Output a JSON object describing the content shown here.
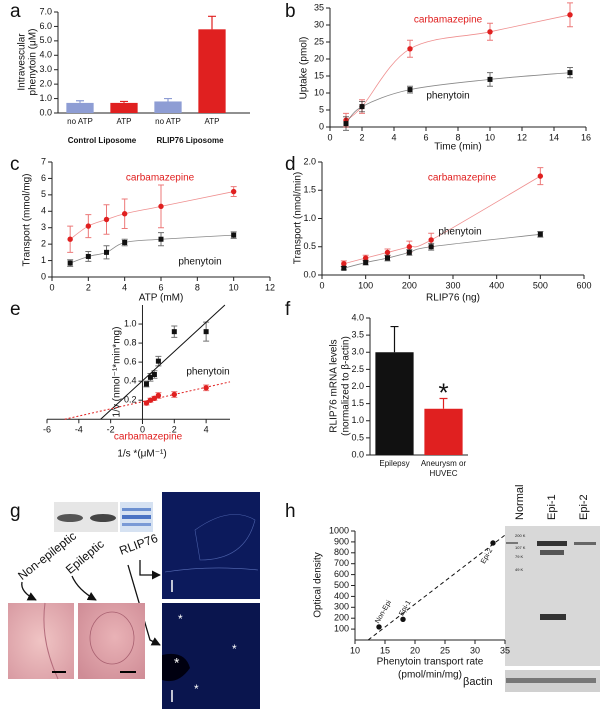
{
  "chart_data": [
    {
      "panel": "a",
      "type": "bar",
      "ylabel": [
        "Intravescular",
        "phenytoin (μM)"
      ],
      "categories": [
        "no ATP",
        "ATP",
        "no ATP",
        "ATP"
      ],
      "groups": [
        "Control Liposome",
        "RLIP76 Liposome"
      ],
      "values": [
        0.7,
        0.7,
        0.8,
        5.8
      ],
      "errors": [
        0.15,
        0.1,
        0.2,
        0.9
      ],
      "colors": [
        "#8e9dd4",
        "#e02020",
        "#8e9dd4",
        "#e02020"
      ],
      "ylim": [
        0,
        7
      ],
      "yticks": [
        {
          "value": 0,
          "label": "0.0"
        },
        {
          "value": 1,
          "label": "1.0"
        },
        {
          "value": 2,
          "label": "2.0"
        },
        {
          "value": 3,
          "label": "3.0"
        },
        {
          "value": 4,
          "label": "4.0"
        },
        {
          "value": 5,
          "label": "5.0"
        },
        {
          "value": 6,
          "label": "6.0"
        },
        {
          "value": 7,
          "label": "7.0"
        }
      ]
    },
    {
      "panel": "b",
      "type": "line",
      "xlabel": "Time (min)",
      "ylabel": "Uptake (pmol)",
      "x": [
        1,
        2,
        5,
        10,
        15
      ],
      "series": [
        {
          "name": "carbamazepine",
          "color": "#e02020",
          "marker": "circle",
          "values": [
            2,
            6,
            23,
            28,
            33
          ],
          "errors": [
            2,
            2,
            2.5,
            2.5,
            3.5
          ]
        },
        {
          "name": "phenytoin",
          "color": "#111111",
          "marker": "square",
          "values": [
            1,
            6,
            11,
            14,
            16
          ],
          "errors": [
            2,
            1.5,
            1,
            2,
            1.5
          ]
        }
      ],
      "xlim": [
        0,
        16
      ],
      "xticks": [
        0,
        2,
        4,
        6,
        8,
        10,
        12,
        14,
        16
      ],
      "ylim": [
        0,
        35
      ],
      "yticks": [
        0,
        5,
        10,
        15,
        20,
        25,
        30,
        35
      ],
      "fit": "curve"
    },
    {
      "panel": "c",
      "type": "line",
      "xlabel": "ATP (mM)",
      "ylabel": "Transport (mmol/mg)",
      "x": [
        1,
        2,
        3,
        4,
        6,
        10
      ],
      "series": [
        {
          "name": "carbamazepine",
          "color": "#e02020",
          "marker": "circle",
          "values": [
            2.3,
            3.1,
            3.5,
            3.85,
            4.3,
            5.2
          ],
          "errors": [
            0.8,
            0.7,
            0.9,
            0.9,
            1.3,
            0.3
          ]
        },
        {
          "name": "phenytoin",
          "color": "#111111",
          "marker": "square",
          "values": [
            0.85,
            1.25,
            1.5,
            2.1,
            2.3,
            2.55
          ],
          "errors": [
            0.2,
            0.3,
            0.4,
            0.2,
            0.4,
            0.2
          ]
        }
      ],
      "xlim": [
        0,
        12
      ],
      "xticks": [
        0,
        2,
        4,
        6,
        8,
        10,
        12
      ],
      "ylim": [
        0,
        7
      ],
      "yticks": [
        0,
        1,
        2,
        3,
        4,
        5,
        6,
        7
      ],
      "fit": "curve"
    },
    {
      "panel": "d",
      "type": "line",
      "xlabel": "RLIP76 (ng)",
      "ylabel": "Transport (nmol/min)",
      "x": [
        50,
        100,
        150,
        200,
        250,
        500
      ],
      "series": [
        {
          "name": "carbamazepine",
          "color": "#e02020",
          "marker": "circle",
          "values": [
            0.2,
            0.3,
            0.4,
            0.5,
            0.62,
            1.75
          ],
          "errors": [
            0.05,
            0.05,
            0.06,
            0.1,
            0.12,
            0.15
          ]
        },
        {
          "name": "phenytoin",
          "color": "#111111",
          "marker": "square",
          "values": [
            0.12,
            0.22,
            0.3,
            0.4,
            0.5,
            0.72
          ],
          "errors": [
            0.03,
            0.04,
            0.05,
            0.05,
            0.06,
            0.05
          ]
        }
      ],
      "xlim": [
        0,
        600
      ],
      "xticks": [
        0,
        100,
        200,
        300,
        400,
        500,
        600
      ],
      "ylim": [
        0,
        2
      ],
      "yticks": [
        {
          "value": 0,
          "label": "0.0"
        },
        {
          "value": 0.5,
          "label": "0.5"
        },
        {
          "value": 1,
          "label": "1.0"
        },
        {
          "value": 1.5,
          "label": "1.5"
        },
        {
          "value": 2,
          "label": "2.0"
        }
      ],
      "fit": "curve"
    },
    {
      "panel": "e",
      "type": "line",
      "xlabel": "1/s *(μM⁻¹)",
      "ylabel": "1/v (nmol⁻¹*min*mg)",
      "x": [
        0.25,
        0.5,
        0.75,
        1,
        2,
        4
      ],
      "series": [
        {
          "name": "phenytoin",
          "color": "#111111",
          "marker": "square",
          "values": [
            0.37,
            0.44,
            0.47,
            0.61,
            0.92,
            0.92
          ],
          "errors": [
            0.03,
            0.04,
            0.04,
            0.05,
            0.06,
            0.1
          ]
        },
        {
          "name": "carbamazepine",
          "color": "#e02020",
          "marker": "circle",
          "values": [
            0.17,
            0.2,
            0.22,
            0.25,
            0.26,
            0.33
          ],
          "errors": [
            0.02,
            0.02,
            0.02,
            0.03,
            0.03,
            0.03
          ]
        }
      ],
      "xlim": [
        -6,
        5.5
      ],
      "xticks": [
        -6,
        -4,
        -2,
        0,
        2,
        4
      ],
      "ylim": [
        -0.05,
        1.2
      ],
      "yticks": [
        0.2,
        0.4,
        0.6,
        0.8,
        {
          "value": 1,
          "label": "1.0"
        }
      ],
      "axes": "cross",
      "fit": "linear"
    },
    {
      "panel": "f",
      "type": "bar",
      "ylabel": [
        "RLIP76 mRNA levels",
        "(normalized to β-actin)"
      ],
      "categories": [
        "Epilepsy",
        "Aneurysm or HUVEC"
      ],
      "values": [
        3.0,
        1.35
      ],
      "errors": [
        0.75,
        0.3
      ],
      "colors": [
        "#111111",
        "#e02020"
      ],
      "annotation": "*",
      "ylim": [
        0,
        4
      ],
      "yticks": [
        {
          "value": 0,
          "label": "0.0"
        },
        {
          "value": 0.5,
          "label": "0.5"
        },
        {
          "value": 1,
          "label": "1.0"
        },
        {
          "value": 1.5,
          "label": "1.5"
        },
        {
          "value": 2,
          "label": "2.0"
        },
        {
          "value": 2.5,
          "label": "2.5"
        },
        {
          "value": 3,
          "label": "3.0"
        },
        {
          "value": 3.5,
          "label": "3.5"
        },
        {
          "value": 4,
          "label": "4.0"
        }
      ]
    },
    {
      "panel": "h",
      "type": "scatter",
      "xlabel": [
        "Phenytoin transport rate",
        "(pmol/min/mg)"
      ],
      "ylabel": "Optical density",
      "x": [
        14,
        18,
        33
      ],
      "values": [
        120,
        190,
        890
      ],
      "point_labels": [
        "Non-Epi",
        "Epi-1",
        "Epi-2"
      ],
      "color": "#111111",
      "xlim": [
        10,
        35
      ],
      "xticks": [
        10,
        15,
        20,
        25,
        30,
        35
      ],
      "ylim": [
        0,
        1000
      ],
      "yticks": [
        100,
        200,
        300,
        400,
        500,
        600,
        700,
        800,
        900,
        1000
      ],
      "fit": "linear"
    }
  ],
  "panel_g": {
    "panel": "g",
    "labels": [
      "Non-epileptic",
      "Epileptic",
      "RLIP76"
    ],
    "asterisk": "*"
  },
  "blot_h": {
    "lanes": [
      "Normal",
      "Epi-1",
      "Epi-2"
    ],
    "markers": [
      "200 K",
      "107 K",
      "79 K",
      "49 K"
    ],
    "loading": "βactin"
  }
}
